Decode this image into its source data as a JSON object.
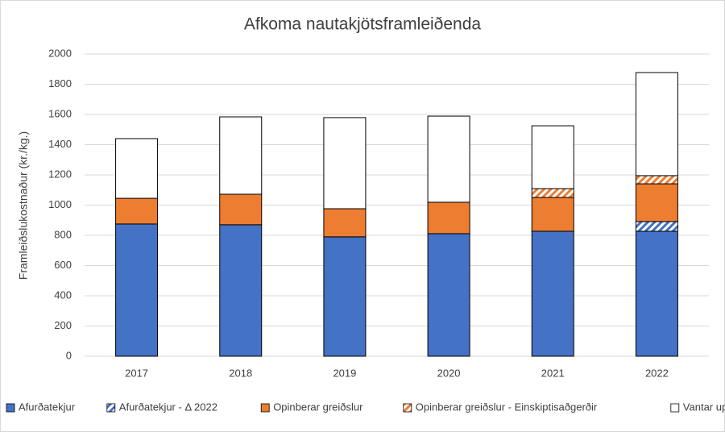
{
  "chart_data": {
    "type": "stacked-bar",
    "title": "Afkoma nautakjötsframleiðenda",
    "ylabel": "Framleiðslukostnaður (kr./kg.)",
    "categories": [
      "2017",
      "2018",
      "2019",
      "2020",
      "2021",
      "2022"
    ],
    "series": [
      {
        "name": "Afurðatekjur",
        "color": "#4472c4",
        "hatch": false,
        "values": [
          875,
          870,
          790,
          811,
          827,
          827
        ]
      },
      {
        "name": "Afurðatekjur - Δ 2022",
        "color": "#4472c4",
        "hatch": true,
        "values": [
          null,
          null,
          null,
          null,
          null,
          64
        ]
      },
      {
        "name": "Opinberar greiðslur",
        "color": "#ed7d31",
        "hatch": false,
        "values": [
          170,
          202,
          186,
          208,
          224,
          250
        ]
      },
      {
        "name": "Opinberar greiðslur - Einskiptisaðgerðir",
        "color": "#ed7d31",
        "hatch": true,
        "values": [
          null,
          null,
          null,
          null,
          58,
          54
        ]
      },
      {
        "name": "Vantar upp í kostnað",
        "color": "#ffffff",
        "hatch": false,
        "values": [
          395,
          512,
          603,
          570,
          416,
          682
        ]
      }
    ],
    "ylim": [
      0,
      2000
    ],
    "yticks": [
      0,
      200,
      400,
      600,
      800,
      1000,
      1200,
      1400,
      1600,
      1800,
      2000
    ],
    "grid": true,
    "legend": "bottom"
  }
}
